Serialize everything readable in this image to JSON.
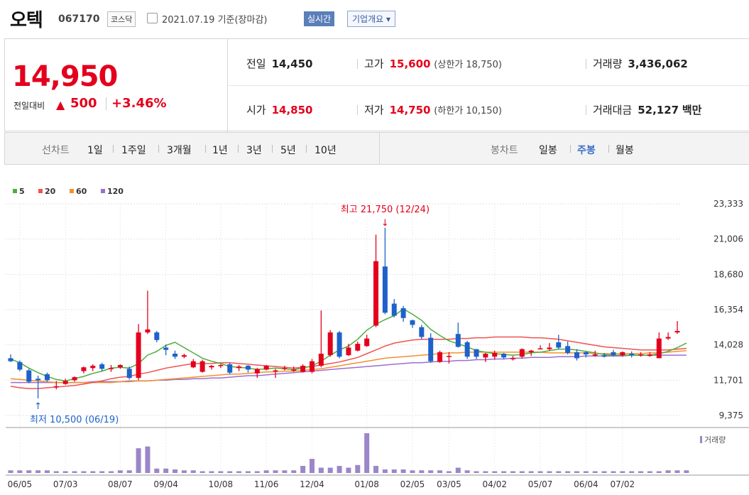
{
  "header": {
    "name": "오텍",
    "code": "067170",
    "market": "코스닥",
    "date": "2021.07.19 기준(장마감)",
    "realtime": "실시간",
    "overview": "기업개요 ▾"
  },
  "quote": {
    "price": "14,950",
    "change_label": "전일대비",
    "change_arrow": "▲",
    "change": "500",
    "change_pct": "+3.46%",
    "prev_label": "전일",
    "prev": "14,450",
    "high_label": "고가",
    "high": "15,600",
    "upper_limit": "(상한가 18,750)",
    "volume_label": "거래량",
    "volume": "3,436,062",
    "open_label": "시가",
    "open": "14,850",
    "low_label": "저가",
    "low": "14,750",
    "lower_limit": "(하한가 10,150)",
    "amount_label": "거래대금",
    "amount": "52,127",
    "amount_unit": "백만"
  },
  "periods": {
    "line_label": "선차트",
    "line_items": [
      "1일",
      "1주일",
      "3개월",
      "1년",
      "3년",
      "5년",
      "10년"
    ],
    "candle_label": "봉차트",
    "candle_items": [
      "일봉",
      "주봉",
      "월봉"
    ],
    "active": "주봉"
  },
  "colors": {
    "up": "#e4001d",
    "down": "#1e62c9",
    "ma5": "#4caf3d",
    "ma20": "#ef5350",
    "ma60": "#f4902c",
    "ma120": "#9b6fd0",
    "volume": "#9b86c9"
  },
  "chart_data": {
    "type": "candlestick",
    "title": "",
    "ylim": [
      9375,
      23333
    ],
    "yticks": [
      "23,333",
      "21,006",
      "18,680",
      "16,354",
      "14,028",
      "11,701",
      "9,375"
    ],
    "xticks": [
      "06/05",
      "07/03",
      "08/07",
      "09/04",
      "10/08",
      "11/06",
      "12/04",
      "01/08",
      "02/05",
      "03/05",
      "04/02",
      "05/07",
      "06/04",
      "07/02"
    ],
    "legend": [
      {
        "name": "5",
        "color": "#4caf3d"
      },
      {
        "name": "20",
        "color": "#ef5350"
      },
      {
        "name": "60",
        "color": "#f4902c"
      },
      {
        "name": "120",
        "color": "#9b6fd0"
      }
    ],
    "high_annotation": "최고 21,750 (12/24)",
    "low_annotation": "최저 10,500 (06/19)",
    "volume_label": "거래량",
    "candles": [
      [
        13150,
        12950,
        13400,
        12900
      ],
      [
        12900,
        12400,
        13000,
        12300
      ],
      [
        12350,
        11600,
        12450,
        11500
      ],
      [
        11800,
        11700,
        12000,
        10500
      ],
      [
        12100,
        11700,
        12200,
        11600
      ],
      [
        11300,
        11300,
        11650,
        11100
      ],
      [
        11450,
        11650,
        11800,
        11400
      ],
      [
        11700,
        11900,
        11950,
        11600
      ],
      [
        12300,
        12550,
        12600,
        12150
      ],
      [
        12500,
        12650,
        12750,
        12300
      ],
      [
        12750,
        12450,
        12850,
        12300
      ],
      [
        12450,
        12500,
        12700,
        12250
      ],
      [
        12550,
        12700,
        12750,
        12450
      ],
      [
        12450,
        11850,
        12600,
        11750
      ],
      [
        11850,
        14850,
        15400,
        11700
      ],
      [
        14850,
        15050,
        17600,
        14750
      ],
      [
        14850,
        14350,
        14950,
        14200
      ],
      [
        13850,
        13700,
        14050,
        13350
      ],
      [
        13450,
        13250,
        13650,
        13100
      ],
      [
        13250,
        13350,
        13450,
        13150
      ],
      [
        12550,
        12950,
        13100,
        12500
      ],
      [
        12250,
        12950,
        13050,
        12200
      ],
      [
        12550,
        12650,
        12700,
        12400
      ],
      [
        12650,
        12700,
        12750,
        12500
      ],
      [
        12750,
        12200,
        12850,
        12100
      ],
      [
        12500,
        12600,
        12700,
        12300
      ],
      [
        12650,
        12400,
        12700,
        12200
      ],
      [
        12150,
        12450,
        12500,
        11850
      ],
      [
        12400,
        12650,
        12700,
        12350
      ],
      [
        12300,
        12350,
        12450,
        11850
      ],
      [
        12450,
        12500,
        12650,
        12350
      ],
      [
        12350,
        12400,
        12600,
        12250
      ],
      [
        12250,
        12650,
        12750,
        12200
      ],
      [
        12250,
        12950,
        13100,
        12150
      ],
      [
        12650,
        13450,
        16300,
        12550
      ],
      [
        13350,
        14850,
        15000,
        13250
      ],
      [
        14850,
        13250,
        14950,
        13150
      ],
      [
        13350,
        13850,
        14100,
        13300
      ],
      [
        13650,
        14100,
        14250,
        13600
      ],
      [
        13950,
        14450,
        14700,
        13900
      ],
      [
        15300,
        19550,
        21300,
        15200
      ],
      [
        19200,
        16150,
        21750,
        16050
      ],
      [
        16750,
        15950,
        17050,
        15850
      ],
      [
        16450,
        15800,
        16600,
        15550
      ],
      [
        15650,
        15350,
        15700,
        15150
      ],
      [
        15200,
        14550,
        15350,
        14400
      ],
      [
        14500,
        12950,
        14800,
        12850
      ],
      [
        12900,
        13550,
        13650,
        12850
      ],
      [
        13250,
        13300,
        13550,
        12800
      ],
      [
        14750,
        13900,
        15500,
        13850
      ],
      [
        14200,
        13250,
        14300,
        13100
      ],
      [
        13750,
        13250,
        13750,
        13100
      ],
      [
        13200,
        13450,
        13500,
        12900
      ],
      [
        13250,
        13500,
        13650,
        13050
      ],
      [
        13450,
        13200,
        13500,
        13100
      ],
      [
        13150,
        13150,
        13300,
        13000
      ],
      [
        13250,
        13750,
        13800,
        13150
      ],
      [
        13550,
        13650,
        13700,
        13300
      ],
      [
        13750,
        13800,
        14000,
        13750
      ],
      [
        13750,
        13850,
        14150,
        13650
      ],
      [
        14200,
        13850,
        14700,
        13750
      ],
      [
        13950,
        13500,
        14250,
        13400
      ],
      [
        13550,
        13150,
        13750,
        13000
      ],
      [
        13550,
        13400,
        13600,
        13200
      ],
      [
        13350,
        13400,
        13650,
        13250
      ],
      [
        13350,
        13250,
        13500,
        13200
      ],
      [
        13550,
        13350,
        13700,
        13250
      ],
      [
        13350,
        13550,
        13600,
        13250
      ],
      [
        13450,
        13350,
        13600,
        13200
      ],
      [
        13400,
        13400,
        13550,
        13250
      ],
      [
        13300,
        13400,
        13550,
        13250
      ],
      [
        13150,
        14450,
        14850,
        13150
      ],
      [
        14450,
        14550,
        14850,
        14350
      ],
      [
        14850,
        14950,
        15600,
        14750
      ]
    ],
    "ma5": [
      13100,
      12850,
      12500,
      12200,
      11950,
      11750,
      11650,
      11800,
      11950,
      12150,
      12300,
      12500,
      12550,
      12500,
      12800,
      13350,
      13600,
      14000,
      14200,
      13850,
      13500,
      13150,
      12950,
      12800,
      12600,
      12550,
      12500,
      12400,
      12450,
      12500,
      12450,
      12400,
      12500,
      12650,
      12950,
      13350,
      13700,
      13950,
      14400,
      15000,
      15400,
      15700,
      15950,
      16400,
      16050,
      15650,
      15050,
      14650,
      14300,
      14100,
      13900,
      13650,
      13550,
      13450,
      13400,
      13350,
      13400,
      13500,
      13550,
      13650,
      13750,
      13750,
      13700,
      13600,
      13500,
      13400,
      13350,
      13350,
      13350,
      13350,
      13350,
      13450,
      13600,
      13850,
      14150
    ],
    "ma20": [
      11300,
      11200,
      11150,
      11150,
      11200,
      11250,
      11300,
      11350,
      11450,
      11550,
      11650,
      11800,
      11900,
      11950,
      12100,
      12200,
      12350,
      12500,
      12600,
      12700,
      12800,
      12800,
      12800,
      12850,
      12850,
      12800,
      12750,
      12700,
      12650,
      12600,
      12550,
      12500,
      12550,
      12600,
      12700,
      12800,
      12900,
      13050,
      13200,
      13450,
      13700,
      13950,
      14150,
      14250,
      14350,
      14400,
      14400,
      14400,
      14400,
      14450,
      14450,
      14500,
      14500,
      14550,
      14550,
      14550,
      14550,
      14500,
      14500,
      14450,
      14400,
      14300,
      14200,
      14100,
      14000,
      13900,
      13850,
      13800,
      13750,
      13700,
      13700,
      13700,
      13700,
      13750,
      13800
    ],
    "ma60": [
      11800,
      11750,
      11700,
      11650,
      11600,
      11550,
      11550,
      11550,
      11550,
      11550,
      11550,
      11550,
      11600,
      11600,
      11650,
      11650,
      11700,
      11750,
      11800,
      11850,
      11900,
      11950,
      12000,
      12050,
      12100,
      12100,
      12150,
      12200,
      12250,
      12250,
      12300,
      12300,
      12350,
      12400,
      12450,
      12550,
      12650,
      12750,
      12850,
      12950,
      13050,
      13150,
      13200,
      13250,
      13300,
      13350,
      13400,
      13450,
      13500,
      13500,
      13550,
      13550,
      13550,
      13550,
      13550,
      13550,
      13550,
      13550,
      13550,
      13500,
      13500,
      13500,
      13500,
      13500,
      13450,
      13450,
      13450,
      13450,
      13450,
      13450,
      13500,
      13500,
      13550,
      13600,
      13650
    ],
    "ma120": [
      11550,
      11550,
      11550,
      11550,
      11550,
      11550,
      11550,
      11550,
      11550,
      11600,
      11600,
      11600,
      11600,
      11650,
      11650,
      11650,
      11700,
      11700,
      11750,
      11750,
      11800,
      11800,
      11850,
      11850,
      11900,
      11950,
      12000,
      12000,
      12050,
      12100,
      12150,
      12200,
      12250,
      12300,
      12350,
      12400,
      12450,
      12500,
      12550,
      12600,
      12650,
      12700,
      12750,
      12800,
      12850,
      12850,
      12900,
      12950,
      12950,
      13000,
      13000,
      13050,
      13050,
      13100,
      13100,
      13150,
      13150,
      13200,
      13200,
      13200,
      13250,
      13250,
      13250,
      13300,
      13300,
      13300,
      13300,
      13300,
      13350,
      13350,
      13350,
      13350,
      13350,
      13350,
      13350
    ],
    "volumes": [
      3,
      3,
      3,
      3,
      3,
      2,
      2,
      2,
      2,
      2,
      2,
      2,
      3,
      3,
      28,
      30,
      5,
      5,
      4,
      3,
      3,
      2,
      2,
      2,
      2,
      2,
      2,
      2,
      3,
      3,
      3,
      3,
      8,
      16,
      6,
      6,
      8,
      6,
      9,
      45,
      8,
      4,
      4,
      4,
      3,
      3,
      3,
      3,
      2,
      6,
      3,
      2,
      2,
      2,
      2,
      2,
      2,
      2,
      2,
      2,
      2,
      2,
      2,
      2,
      2,
      2,
      2,
      2,
      2,
      2,
      2,
      2,
      3,
      3,
      3
    ],
    "volume_scale": 45
  }
}
